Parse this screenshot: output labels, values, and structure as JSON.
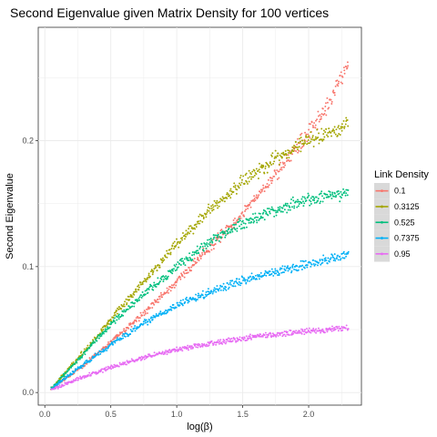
{
  "chart_data": {
    "type": "scatter",
    "title": "Second Eigenvalue given Matrix Density for 100 vertices",
    "xlabel": "log(β)",
    "ylabel": "Second Eigenvalue",
    "xlim": [
      -0.05,
      2.4
    ],
    "ylim": [
      -0.01,
      0.29
    ],
    "x_ticks": [
      0.0,
      0.5,
      1.0,
      1.5,
      2.0
    ],
    "x_tick_labels": [
      "0.0",
      "0.5",
      "1.0",
      "1.5",
      "2.0"
    ],
    "y_ticks": [
      0.0,
      0.1,
      0.2
    ],
    "y_tick_labels": [
      "0.0",
      "0.1",
      "0.2"
    ],
    "grid": true,
    "legend": {
      "title": "Link Density",
      "position": "right"
    },
    "series": [
      {
        "name": "0.1",
        "color": "#F8766D",
        "x": [
          0.05,
          0.25,
          0.5,
          0.75,
          1.0,
          1.25,
          1.5,
          1.75,
          2.0,
          2.15,
          2.3
        ],
        "y": [
          0.003,
          0.018,
          0.04,
          0.063,
          0.088,
          0.115,
          0.143,
          0.173,
          0.207,
          0.228,
          0.262
        ]
      },
      {
        "name": "0.3125",
        "color": "#A3A500",
        "x": [
          0.05,
          0.25,
          0.5,
          0.75,
          1.0,
          1.25,
          1.5,
          1.75,
          2.0,
          2.15,
          2.3
        ],
        "y": [
          0.003,
          0.027,
          0.058,
          0.088,
          0.118,
          0.145,
          0.168,
          0.186,
          0.2,
          0.206,
          0.213
        ]
      },
      {
        "name": "0.525",
        "color": "#00BF7D",
        "x": [
          0.05,
          0.25,
          0.5,
          0.75,
          1.0,
          1.25,
          1.5,
          1.75,
          2.0,
          2.15,
          2.3
        ],
        "y": [
          0.003,
          0.026,
          0.054,
          0.078,
          0.1,
          0.12,
          0.134,
          0.145,
          0.153,
          0.156,
          0.158
        ]
      },
      {
        "name": "0.7375",
        "color": "#00B0F6",
        "x": [
          0.05,
          0.25,
          0.5,
          0.75,
          1.0,
          1.25,
          1.5,
          1.75,
          2.0,
          2.15,
          2.3
        ],
        "y": [
          0.003,
          0.019,
          0.038,
          0.055,
          0.069,
          0.08,
          0.089,
          0.096,
          0.102,
          0.106,
          0.109
        ]
      },
      {
        "name": "0.95",
        "color": "#E76BF3",
        "x": [
          0.05,
          0.25,
          0.5,
          0.75,
          1.0,
          1.25,
          1.5,
          1.75,
          2.0,
          2.15,
          2.3
        ],
        "y": [
          0.002,
          0.011,
          0.02,
          0.028,
          0.034,
          0.039,
          0.043,
          0.046,
          0.049,
          0.05,
          0.051
        ]
      }
    ]
  }
}
